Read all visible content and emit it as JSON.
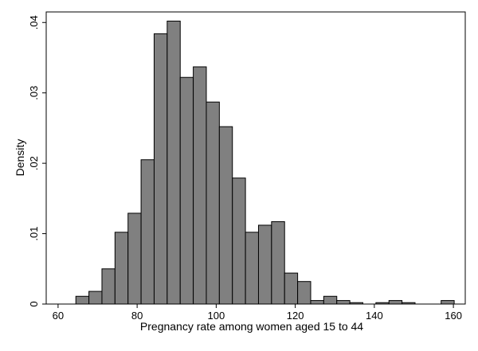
{
  "chart_data": {
    "type": "bar",
    "title": "",
    "xlabel": "Pregnancy rate among women aged 15 to 44",
    "ylabel": "Density",
    "xlim": [
      57,
      163
    ],
    "ylim": [
      0,
      0.0415
    ],
    "xticks": [
      60,
      80,
      100,
      120,
      140,
      160
    ],
    "xtick_labels": [
      "60",
      "80",
      "100",
      "120",
      "140",
      "160"
    ],
    "yticks": [
      0,
      0.01,
      0.02,
      0.03,
      0.04
    ],
    "ytick_labels": [
      "0",
      ".01",
      ".02",
      ".03",
      ".04"
    ],
    "grid": false,
    "legend": "none",
    "bar_color": "#808080",
    "bar_edge_color": "#000000",
    "bins": [
      {
        "x0": 64.5,
        "x1": 67.8,
        "value": 0.0011
      },
      {
        "x0": 67.8,
        "x1": 71.1,
        "value": 0.0018
      },
      {
        "x0": 71.1,
        "x1": 74.4,
        "value": 0.005
      },
      {
        "x0": 74.4,
        "x1": 77.7,
        "value": 0.0102
      },
      {
        "x0": 77.7,
        "x1": 81.0,
        "value": 0.0129
      },
      {
        "x0": 81.0,
        "x1": 84.3,
        "value": 0.0205
      },
      {
        "x0": 84.3,
        "x1": 87.6,
        "value": 0.0384
      },
      {
        "x0": 87.6,
        "x1": 90.9,
        "value": 0.0402
      },
      {
        "x0": 90.9,
        "x1": 94.2,
        "value": 0.0322
      },
      {
        "x0": 94.2,
        "x1": 97.5,
        "value": 0.0337
      },
      {
        "x0": 97.5,
        "x1": 100.8,
        "value": 0.0287
      },
      {
        "x0": 100.8,
        "x1": 104.1,
        "value": 0.0252
      },
      {
        "x0": 104.1,
        "x1": 107.4,
        "value": 0.0179
      },
      {
        "x0": 107.4,
        "x1": 110.7,
        "value": 0.0102
      },
      {
        "x0": 110.7,
        "x1": 114.0,
        "value": 0.0112
      },
      {
        "x0": 114.0,
        "x1": 117.3,
        "value": 0.0117
      },
      {
        "x0": 117.3,
        "x1": 120.6,
        "value": 0.0044
      },
      {
        "x0": 120.6,
        "x1": 123.9,
        "value": 0.0032
      },
      {
        "x0": 123.9,
        "x1": 127.2,
        "value": 0.0005
      },
      {
        "x0": 127.2,
        "x1": 130.5,
        "value": 0.0011
      },
      {
        "x0": 130.5,
        "x1": 133.8,
        "value": 0.0005
      },
      {
        "x0": 133.8,
        "x1": 137.1,
        "value": 0.0002
      },
      {
        "x0": 140.4,
        "x1": 143.7,
        "value": 0.0002
      },
      {
        "x0": 143.7,
        "x1": 147.0,
        "value": 0.0005
      },
      {
        "x0": 147.0,
        "x1": 150.3,
        "value": 0.0002
      },
      {
        "x0": 156.9,
        "x1": 160.2,
        "value": 0.0005
      }
    ]
  }
}
